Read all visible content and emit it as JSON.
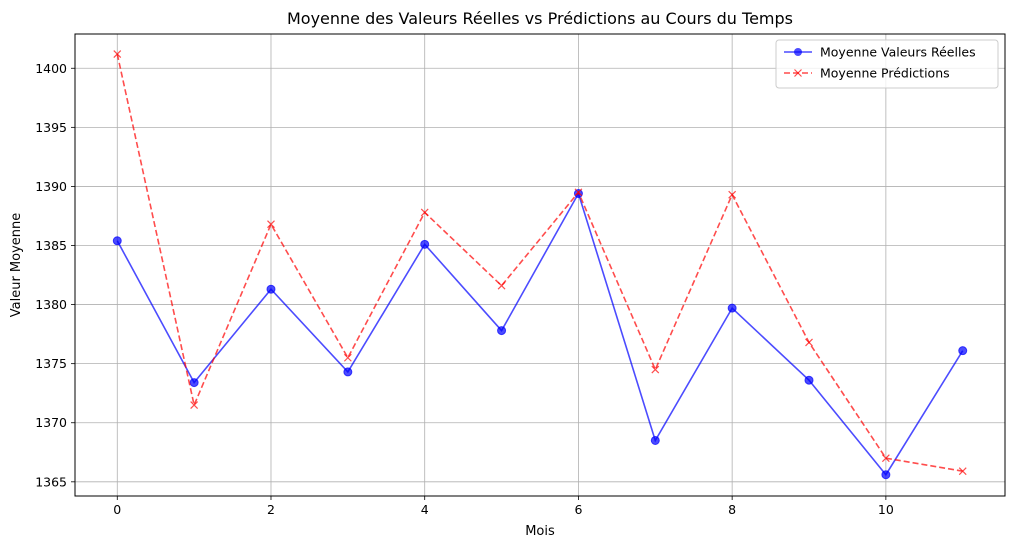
{
  "chart_data": {
    "type": "line",
    "title": "Moyenne des Valeurs Réelles vs Prédictions au Cours du Temps",
    "xlabel": "Mois",
    "ylabel": "Valeur Moyenne",
    "x": [
      0,
      1,
      2,
      3,
      4,
      5,
      6,
      7,
      8,
      9,
      10,
      11
    ],
    "xlim": [
      -0.55,
      11.55
    ],
    "ylim": [
      1363.8,
      1402.9
    ],
    "xticks": [
      0,
      2,
      4,
      6,
      8,
      10
    ],
    "yticks": [
      1365,
      1370,
      1375,
      1380,
      1385,
      1390,
      1395,
      1400
    ],
    "grid": true,
    "legend_position": "top-right",
    "series": [
      {
        "name": "Moyenne Valeurs Réelles",
        "color": "#0000ff",
        "marker": "circle",
        "linestyle": "solid",
        "values": [
          1385.4,
          1373.4,
          1381.3,
          1374.3,
          1385.1,
          1377.8,
          1389.4,
          1368.5,
          1379.7,
          1373.6,
          1365.6,
          1376.1
        ]
      },
      {
        "name": "Moyenne Prédictions",
        "color": "#ff0000",
        "marker": "x",
        "linestyle": "dashed",
        "values": [
          1401.2,
          1371.5,
          1386.8,
          1375.5,
          1387.8,
          1381.6,
          1389.5,
          1374.5,
          1389.3,
          1376.8,
          1367.0,
          1365.9
        ]
      }
    ]
  }
}
